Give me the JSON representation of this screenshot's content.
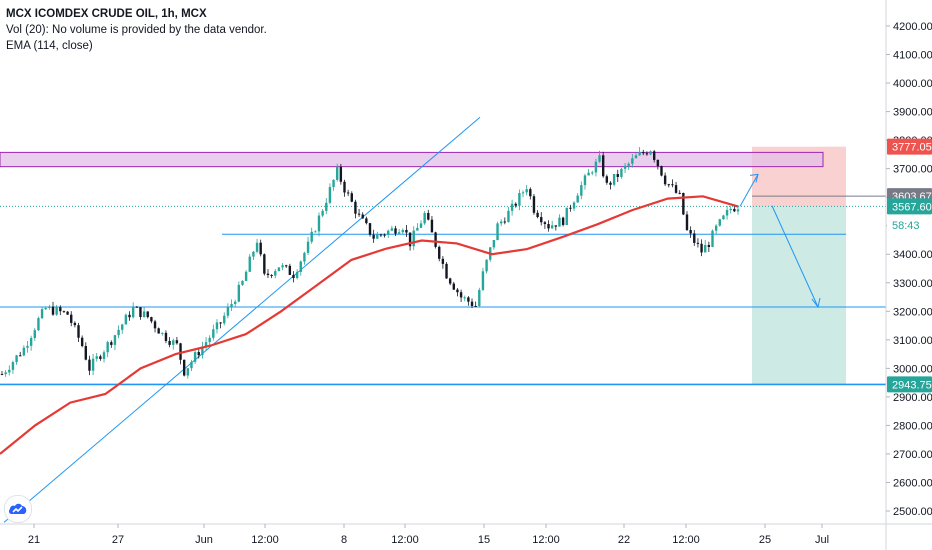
{
  "legend": {
    "title": "MCX ICOMDEX CRUDE OIL, 1h, MCX",
    "volume": "Vol (20): No volume is provided by the data vendor.",
    "ema": "EMA (114, close)"
  },
  "colors": {
    "up": "#26a69a",
    "down": "#ef5350",
    "candle_body": "#131722",
    "ema": "#e53935",
    "trendline": "#2196f3",
    "zone_fill": "#e1bee7",
    "zone_border": "#9c27b0",
    "stop_fill": "#f8c9c9",
    "target_fill": "#cdeae5"
  },
  "logo_icon": "tradingview-cloud-icon",
  "chart_data": {
    "type": "candlestick",
    "ylim": [
      2455,
      4275
    ],
    "y_ticks": [
      "2500.00",
      "2600.00",
      "2700.00",
      "2800.00",
      "2900.00",
      "3000.00",
      "3100.00",
      "3200.00",
      "3300.00",
      "3400.00",
      "3500.00",
      "3600.00",
      "3700.00",
      "3800.00",
      "3900.00",
      "4000.00",
      "4100.00",
      "4200.00"
    ],
    "x_ticks": [
      "21",
      "27",
      "Jun",
      "12:00",
      "8",
      "12:00",
      "15",
      "12:00",
      "22",
      "12:00",
      "25",
      "Jul"
    ],
    "price_labels": [
      {
        "text": "3777.05",
        "value": 3777.05,
        "bg": "#ef5350",
        "fg": "#ffffff"
      },
      {
        "text": "3603.67",
        "value": 3603.67,
        "bg": "#787b86",
        "fg": "#ffffff"
      },
      {
        "text": "3567.60",
        "value": 3567.6,
        "bg": "#26a69a",
        "fg": "#ffffff"
      },
      {
        "text": "58:43",
        "value": 3525,
        "bg": "#ffffff",
        "fg": "#26a69a"
      },
      {
        "text": "2943.75",
        "value": 2943.75,
        "bg": "#26a69a",
        "fg": "#ffffff"
      }
    ],
    "price_path": [
      [
        0,
        2980
      ],
      [
        3,
        3070
      ],
      [
        5,
        3170
      ],
      [
        6,
        3210
      ],
      [
        9,
        3190
      ],
      [
        11,
        3080
      ],
      [
        12,
        3000
      ],
      [
        15,
        3100
      ],
      [
        18,
        3210
      ],
      [
        20,
        3180
      ],
      [
        22,
        3120
      ],
      [
        24,
        3080
      ],
      [
        25,
        2990
      ],
      [
        27,
        3060
      ],
      [
        30,
        3160
      ],
      [
        32,
        3250
      ],
      [
        33,
        3300
      ],
      [
        35,
        3450
      ],
      [
        36,
        3320
      ],
      [
        38,
        3360
      ],
      [
        40,
        3330
      ],
      [
        42,
        3430
      ],
      [
        44,
        3560
      ],
      [
        46,
        3690
      ],
      [
        47,
        3630
      ],
      [
        49,
        3530
      ],
      [
        51,
        3460
      ],
      [
        53,
        3480
      ],
      [
        55,
        3500
      ],
      [
        56,
        3440
      ],
      [
        58,
        3540
      ],
      [
        59,
        3470
      ],
      [
        61,
        3330
      ],
      [
        63,
        3250
      ],
      [
        65,
        3220
      ],
      [
        66,
        3330
      ],
      [
        68,
        3500
      ],
      [
        70,
        3560
      ],
      [
        72,
        3640
      ],
      [
        73,
        3560
      ],
      [
        75,
        3500
      ],
      [
        77,
        3520
      ],
      [
        79,
        3620
      ],
      [
        81,
        3700
      ],
      [
        82,
        3730
      ],
      [
        83,
        3640
      ],
      [
        85,
        3690
      ],
      [
        87,
        3740
      ],
      [
        89,
        3770
      ],
      [
        91,
        3660
      ],
      [
        93,
        3600
      ],
      [
        94,
        3480
      ],
      [
        96,
        3410
      ],
      [
        97,
        3440
      ],
      [
        98,
        3490
      ],
      [
        100,
        3560
      ],
      [
        101,
        3570
      ]
    ],
    "ema_values": [
      2700,
      2800,
      2880,
      2910,
      3000,
      3050,
      3080,
      3120,
      3200,
      3290,
      3380,
      3420,
      3448,
      3438,
      3400,
      3418,
      3460,
      3505,
      3555,
      3595,
      3603,
      3567.6
    ],
    "horizontal_levels": [
      {
        "name": "resistance-zone-top",
        "value": 3757
      },
      {
        "name": "resistance-zone-bottom",
        "value": 3707
      },
      {
        "name": "support-line-3470",
        "value": 3470
      },
      {
        "name": "support-line-3215",
        "value": 3215
      },
      {
        "name": "support-line-2944",
        "value": 2943.75
      }
    ],
    "trendline": {
      "from": [
        0,
        2460
      ],
      "to": [
        80,
        3880
      ]
    },
    "long_short_tool": {
      "entry": 3567.6,
      "stop": 3777.05,
      "target": 2943.75
    },
    "projection": {
      "first_target": 3215
    }
  }
}
